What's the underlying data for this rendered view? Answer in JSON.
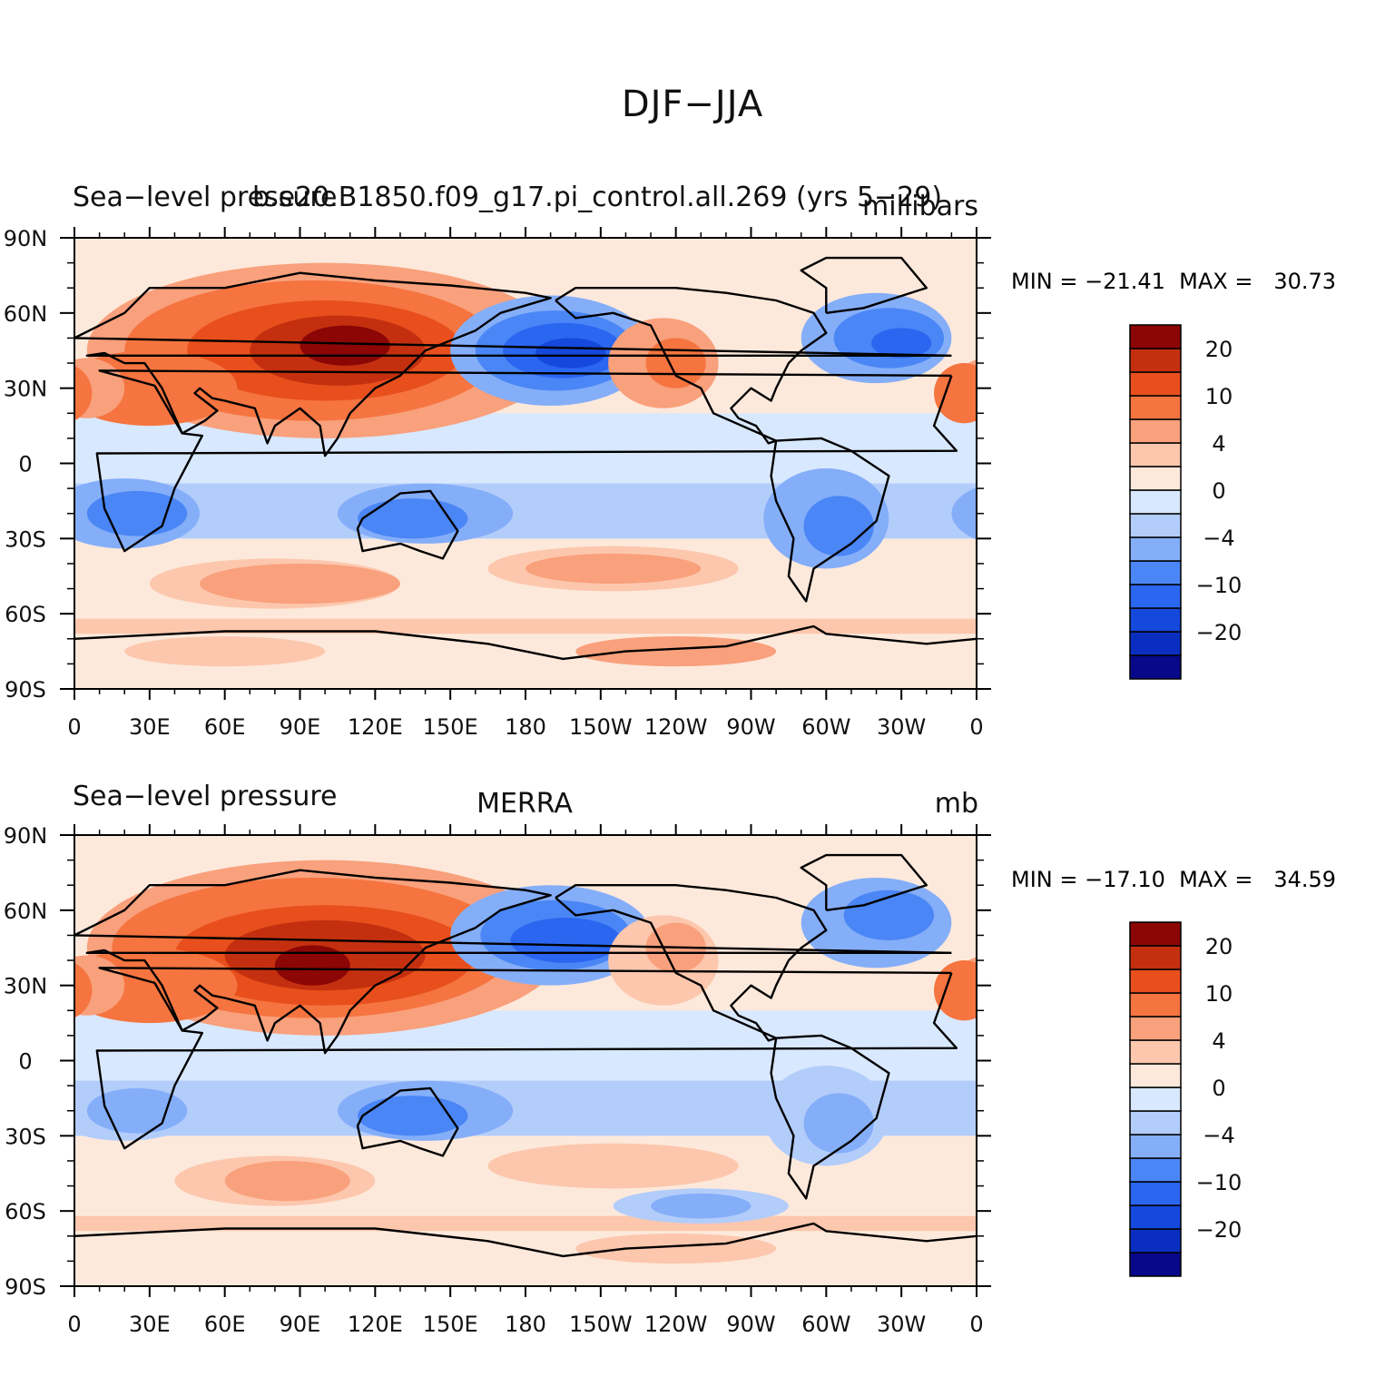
{
  "title": "DJF−JJA",
  "colors": [
    "#08088a",
    "#0a2fc0",
    "#1548dc",
    "#2a66f0",
    "#4a86f5",
    "#85aef9",
    "#b3cdfb",
    "#d8e8fe",
    "#fde9db",
    "#fcc7ad",
    "#f9a07c",
    "#f5743f",
    "#e84f1c",
    "#c4300f",
    "#8b0605"
  ],
  "colorbar_labels": [
    "−20",
    "−10",
    "−4",
    "0",
    "4",
    "10",
    "20"
  ],
  "x_tick_labels": [
    "0",
    "30E",
    "60E",
    "90E",
    "120E",
    "150E",
    "180",
    "150W",
    "120W",
    "90W",
    "60W",
    "30W",
    "0"
  ],
  "y_tick_labels": [
    "90N",
    "60N",
    "30N",
    "0",
    "30S",
    "60S",
    "90S"
  ],
  "panels": [
    {
      "left_string": "Sea−level pressure",
      "center_string": "b.e20.B1850.f09_g17.pi_control.all.269 (yrs 5−29)",
      "right_string": "millibars",
      "min": "−21.41",
      "max": "30.73",
      "minmax_text": "MIN = −21.41  MAX =   30.73"
    },
    {
      "left_string": "Sea−level pressure",
      "center_string": "MERRA",
      "right_string": "mb",
      "min": "−17.10",
      "max": "34.59",
      "minmax_text": "MIN = −17.10  MAX =   34.59"
    }
  ],
  "chart_data": {
    "type": "heatmap",
    "title": "DJF−JJA",
    "variable": "Sea−level pressure",
    "x_range": [
      "0",
      "0"
    ],
    "y_range": [
      "90S",
      "90N"
    ],
    "contour_levels": [
      -20,
      -10,
      -4,
      0,
      4,
      10,
      20
    ],
    "panels": [
      {
        "name": "b.e20.B1850.f09_g17.pi_control.all.269 (yrs 5−29)",
        "units": "millibars",
        "min": -21.41,
        "max": 30.73
      },
      {
        "name": "MERRA",
        "units": "mb",
        "min": -17.1,
        "max": 34.59
      }
    ]
  }
}
